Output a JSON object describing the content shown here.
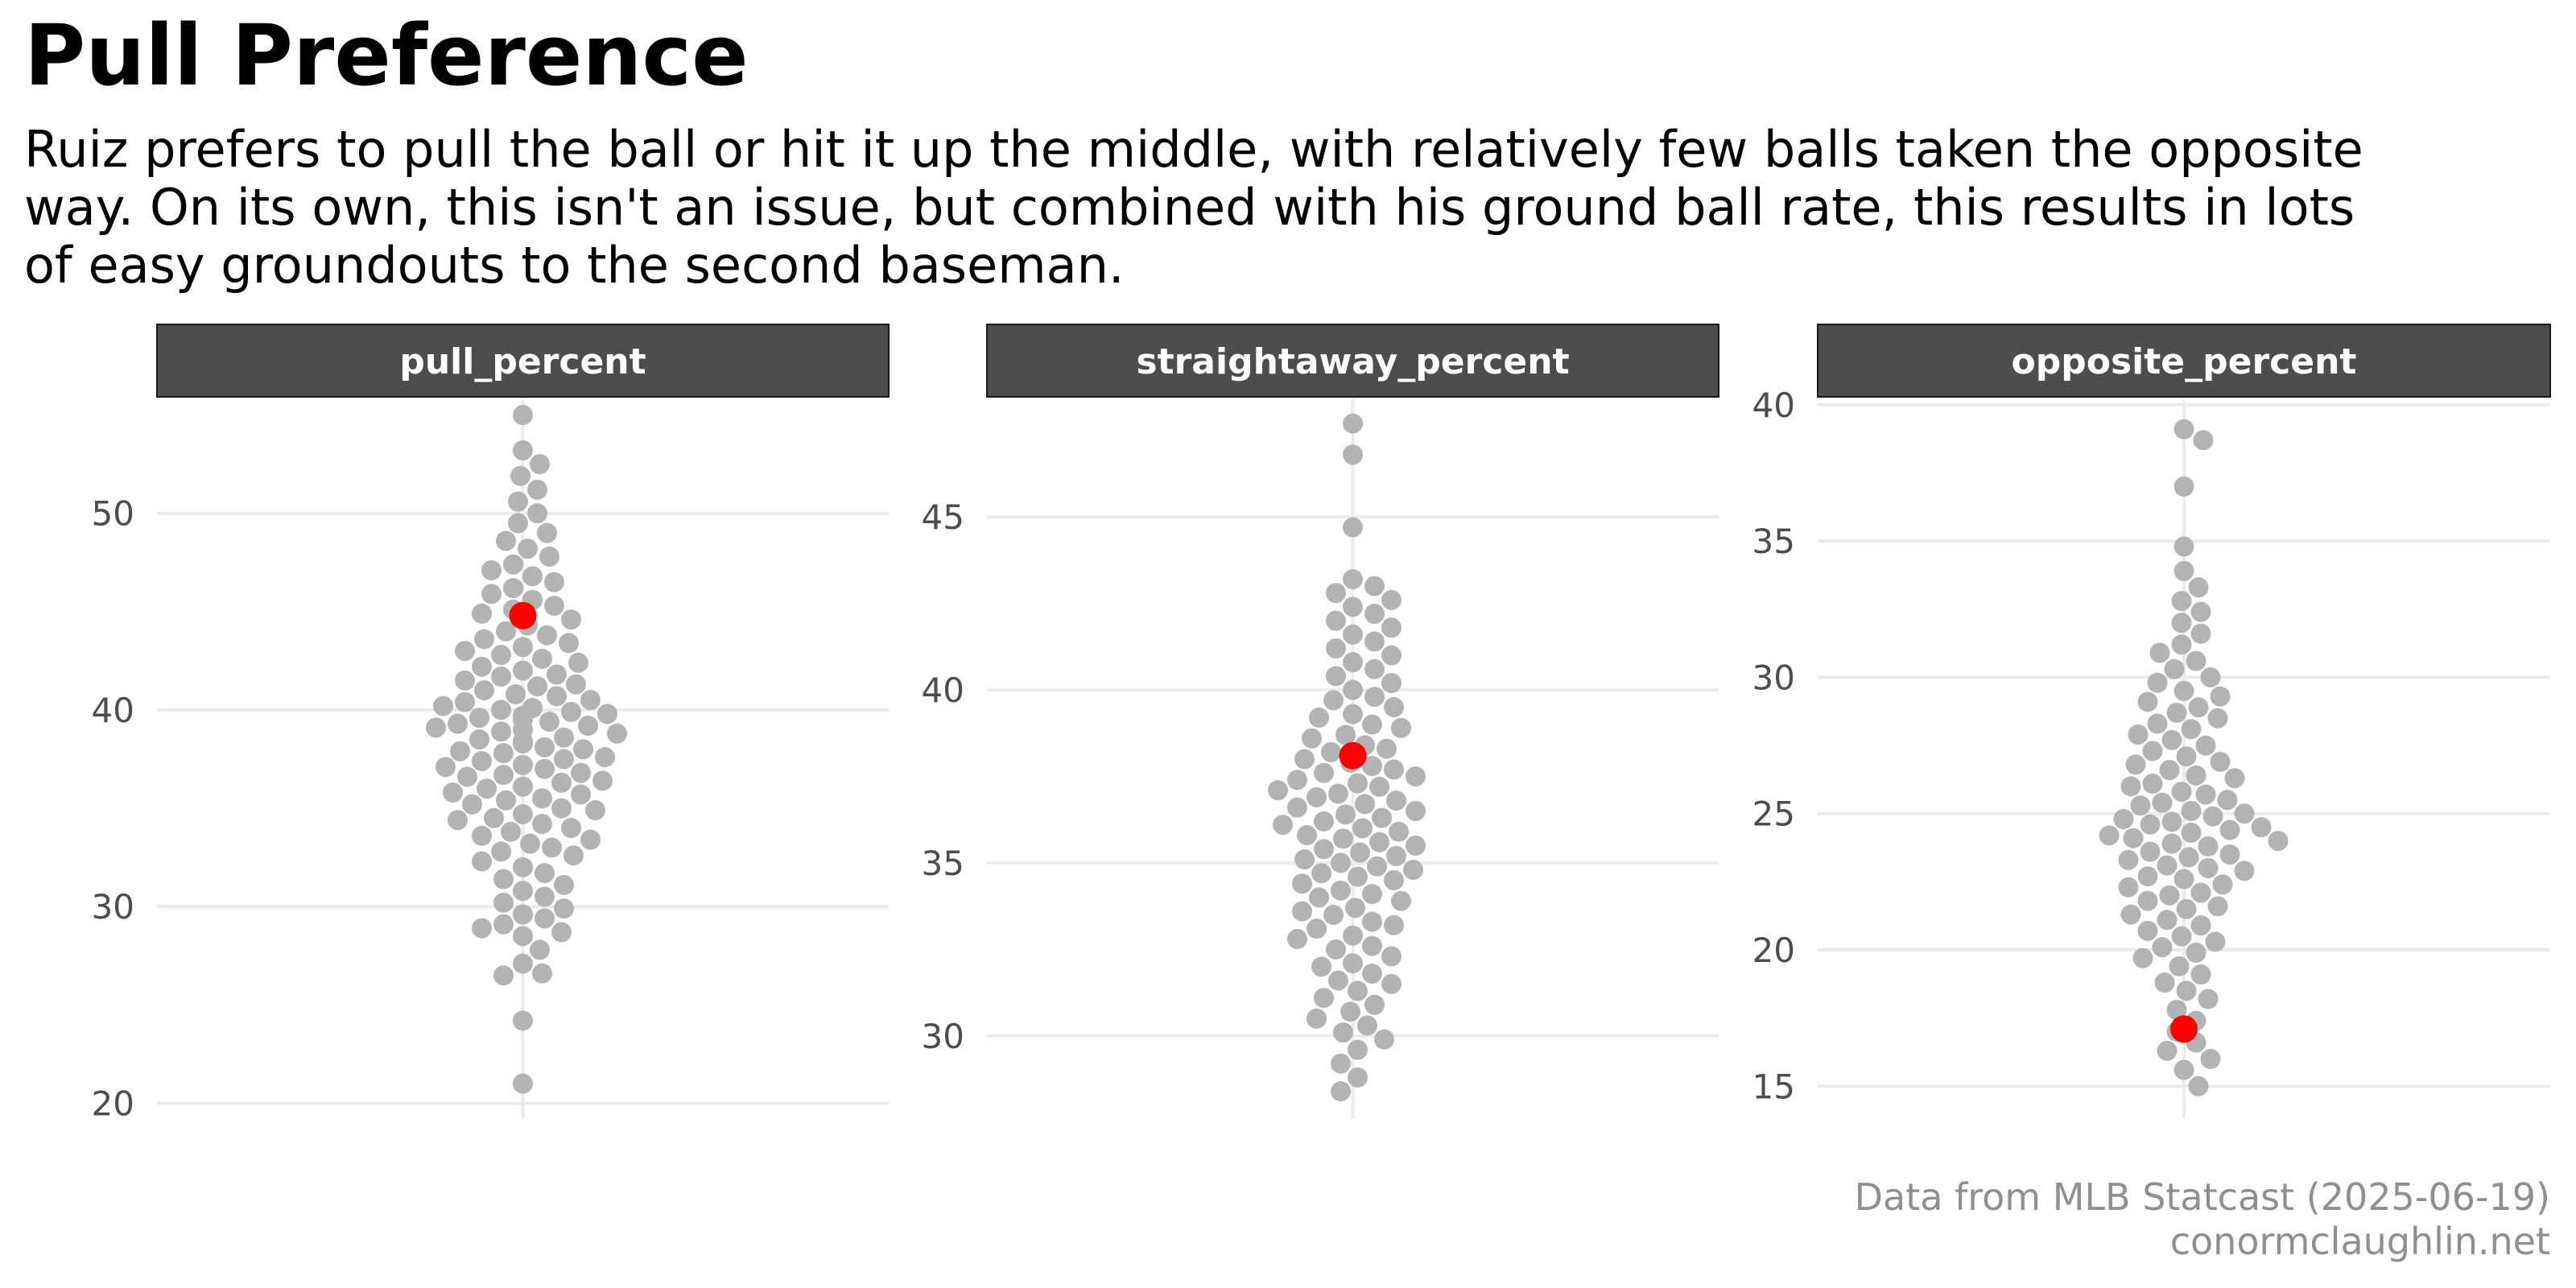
{
  "title": "Pull Preference",
  "subtitle_lines": [
    "Ruiz prefers to pull the ball or hit it up the middle, with relatively few balls taken the opposite",
    "way. On its own, this isn't an issue, but combined with his ground ball rate, this results in lots",
    "of easy groundouts to the second baseman."
  ],
  "caption_lines": [
    "Data from MLB Statcast (2025-06-19)",
    "conormclaughlin.net"
  ],
  "colors": {
    "population_point": "#b3b3b3",
    "highlight_point": "#ff0000",
    "strip_background": "#4d4d4d",
    "strip_text": "#ffffff",
    "gridline": "#ebebeb",
    "axis_text": "#4d4d4d",
    "caption_text": "#8f8f8f"
  },
  "chart_data": [
    {
      "type": "beeswarm",
      "panel": "pull_percent",
      "ylim": [
        19.2,
        55.8
      ],
      "yticks": [
        20,
        30,
        40,
        50
      ],
      "grid": true,
      "highlight": {
        "value": 44.8
      },
      "values": [
        21.0,
        24.2,
        26.5,
        26.6,
        27.1,
        27.8,
        28.5,
        28.7,
        28.9,
        29.1,
        29.4,
        29.6,
        29.9,
        30.2,
        30.5,
        30.8,
        31.1,
        31.4,
        31.7,
        32.0,
        32.3,
        32.6,
        32.8,
        33.0,
        33.2,
        33.4,
        33.6,
        33.8,
        34.0,
        34.2,
        34.4,
        34.5,
        34.7,
        34.9,
        35.0,
        35.2,
        35.4,
        35.5,
        35.7,
        35.8,
        36.0,
        36.1,
        36.3,
        36.4,
        36.6,
        36.7,
        36.8,
        37.0,
        37.1,
        37.2,
        37.4,
        37.5,
        37.6,
        37.8,
        37.9,
        38.0,
        38.1,
        38.3,
        38.4,
        38.5,
        38.6,
        38.8,
        38.9,
        39.0,
        39.1,
        39.2,
        39.3,
        39.4,
        39.5,
        39.6,
        39.7,
        39.8,
        39.9,
        40.0,
        40.1,
        40.2,
        40.4,
        40.5,
        40.7,
        40.8,
        41.0,
        41.2,
        41.3,
        41.5,
        41.7,
        41.8,
        42.0,
        42.2,
        42.4,
        42.6,
        42.8,
        43.0,
        43.2,
        43.4,
        43.6,
        43.8,
        44.0,
        44.3,
        44.6,
        44.9,
        45.1,
        45.3,
        45.6,
        45.9,
        46.2,
        46.5,
        46.8,
        47.1,
        47.4,
        47.8,
        48.2,
        48.6,
        49.0,
        49.5,
        50.0,
        50.6,
        51.2,
        51.9,
        52.5,
        53.2,
        55.0
      ]
    },
    {
      "type": "beeswarm",
      "panel": "straightaway_percent",
      "ylim": [
        27.6,
        48.4
      ],
      "yticks": [
        30,
        35,
        40,
        45
      ],
      "grid": true,
      "highlight": {
        "value": 38.1
      },
      "values": [
        28.4,
        28.8,
        29.2,
        29.6,
        29.9,
        30.1,
        30.3,
        30.5,
        30.7,
        30.9,
        31.1,
        31.3,
        31.5,
        31.6,
        31.8,
        32.0,
        32.1,
        32.3,
        32.5,
        32.6,
        32.8,
        32.9,
        33.1,
        33.2,
        33.3,
        33.5,
        33.6,
        33.7,
        33.9,
        34.0,
        34.1,
        34.2,
        34.4,
        34.5,
        34.6,
        34.7,
        34.8,
        34.9,
        35.0,
        35.1,
        35.2,
        35.3,
        35.4,
        35.5,
        35.6,
        35.7,
        35.8,
        35.9,
        36.0,
        36.1,
        36.2,
        36.3,
        36.4,
        36.5,
        36.6,
        36.7,
        36.8,
        36.9,
        37.0,
        37.1,
        37.2,
        37.3,
        37.4,
        37.5,
        37.6,
        37.7,
        37.8,
        37.9,
        38.0,
        38.2,
        38.3,
        38.4,
        38.6,
        38.7,
        38.9,
        39.0,
        39.2,
        39.3,
        39.5,
        39.7,
        39.8,
        40.0,
        40.2,
        40.4,
        40.6,
        40.8,
        41.0,
        41.2,
        41.4,
        41.6,
        41.8,
        42.0,
        42.2,
        42.4,
        42.6,
        42.8,
        43.0,
        43.2,
        44.7,
        46.8,
        47.7
      ]
    },
    {
      "type": "beeswarm",
      "panel": "opposite_percent",
      "ylim": [
        13.8,
        40.2
      ],
      "yticks": [
        15,
        20,
        25,
        30,
        35,
        40
      ],
      "grid": true,
      "highlight": {
        "value": 17.1
      },
      "values": [
        15.0,
        15.6,
        16.0,
        16.3,
        16.6,
        17.0,
        17.4,
        17.8,
        18.2,
        18.5,
        18.8,
        19.1,
        19.4,
        19.7,
        19.9,
        20.1,
        20.3,
        20.5,
        20.7,
        20.9,
        21.1,
        21.3,
        21.5,
        21.6,
        21.8,
        22.0,
        22.1,
        22.3,
        22.4,
        22.6,
        22.7,
        22.9,
        23.0,
        23.1,
        23.3,
        23.4,
        23.5,
        23.6,
        23.8,
        23.9,
        24.0,
        24.1,
        24.2,
        24.3,
        24.4,
        24.5,
        24.6,
        24.7,
        24.8,
        24.9,
        25.0,
        25.1,
        25.3,
        25.4,
        25.5,
        25.7,
        25.8,
        26.0,
        26.1,
        26.3,
        26.4,
        26.6,
        26.8,
        26.9,
        27.1,
        27.3,
        27.5,
        27.7,
        27.9,
        28.1,
        28.3,
        28.5,
        28.7,
        28.9,
        29.1,
        29.3,
        29.5,
        29.8,
        30.0,
        30.3,
        30.6,
        30.9,
        31.2,
        31.6,
        32.0,
        32.4,
        32.8,
        33.3,
        33.9,
        34.8,
        37.0,
        38.7,
        39.1
      ]
    }
  ]
}
